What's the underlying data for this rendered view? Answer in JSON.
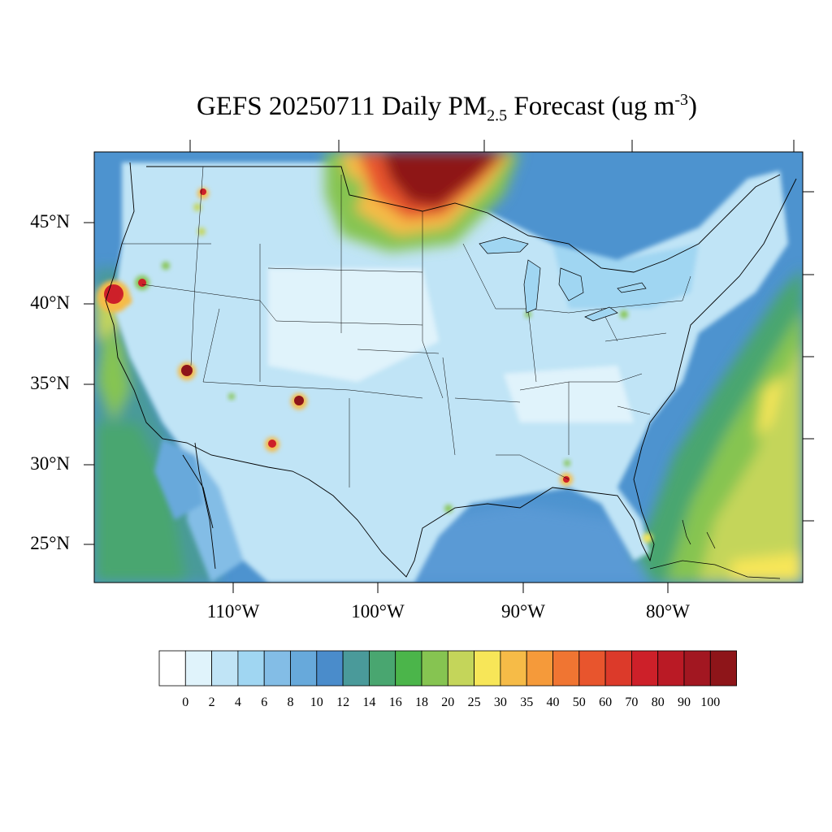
{
  "title": {
    "prefix": "GEFS 20250711 Daily PM",
    "subscript": "2.5",
    "middle": " Forecast (ug m",
    "superscript": "-3",
    "suffix": ")"
  },
  "lat_labels": [
    "45°N",
    "40°N",
    "35°N",
    "30°N",
    "25°N"
  ],
  "lon_labels": [
    "110°W",
    "100°W",
    "90°W",
    "80°W"
  ],
  "colorbar": {
    "labels": [
      "0",
      "2",
      "4",
      "6",
      "8",
      "10",
      "12",
      "14",
      "16",
      "18",
      "20",
      "25",
      "30",
      "35",
      "40",
      "50",
      "60",
      "70",
      "80",
      "90",
      "100"
    ],
    "colors": [
      "#ffffff",
      "#e0f3fb",
      "#c0e4f6",
      "#a0d6f2",
      "#83bde6",
      "#67a9db",
      "#4a8ccb",
      "#4a9a9a",
      "#49a670",
      "#4bb54a",
      "#86c451",
      "#c4d55a",
      "#f7e658",
      "#f6bb47",
      "#f59a3a",
      "#f07532",
      "#e8552d",
      "#dc3a2a",
      "#cd2029",
      "#ba1a25",
      "#a21721",
      "#8e1519"
    ]
  },
  "colors": {
    "land_base": "#c0e4f6",
    "ocean_base": "#67a9db",
    "canada_smoke": "#8e1519"
  }
}
